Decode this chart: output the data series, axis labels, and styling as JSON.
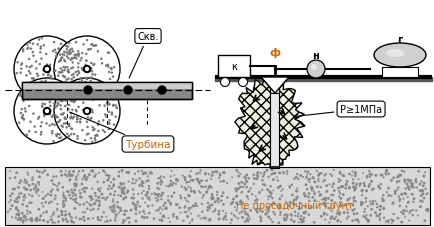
{
  "bg_color": "#ffffff",
  "label_skv": "Скв.",
  "label_turbina": "Турбина",
  "label_pressure": "P≥1МПа",
  "label_ground": "Не просадочный грунт",
  "label_k": "к",
  "label_phi": "ф",
  "label_n": "н",
  "label_g": "г",
  "fig_w": 4.35,
  "fig_h": 2.28,
  "dpi": 100
}
